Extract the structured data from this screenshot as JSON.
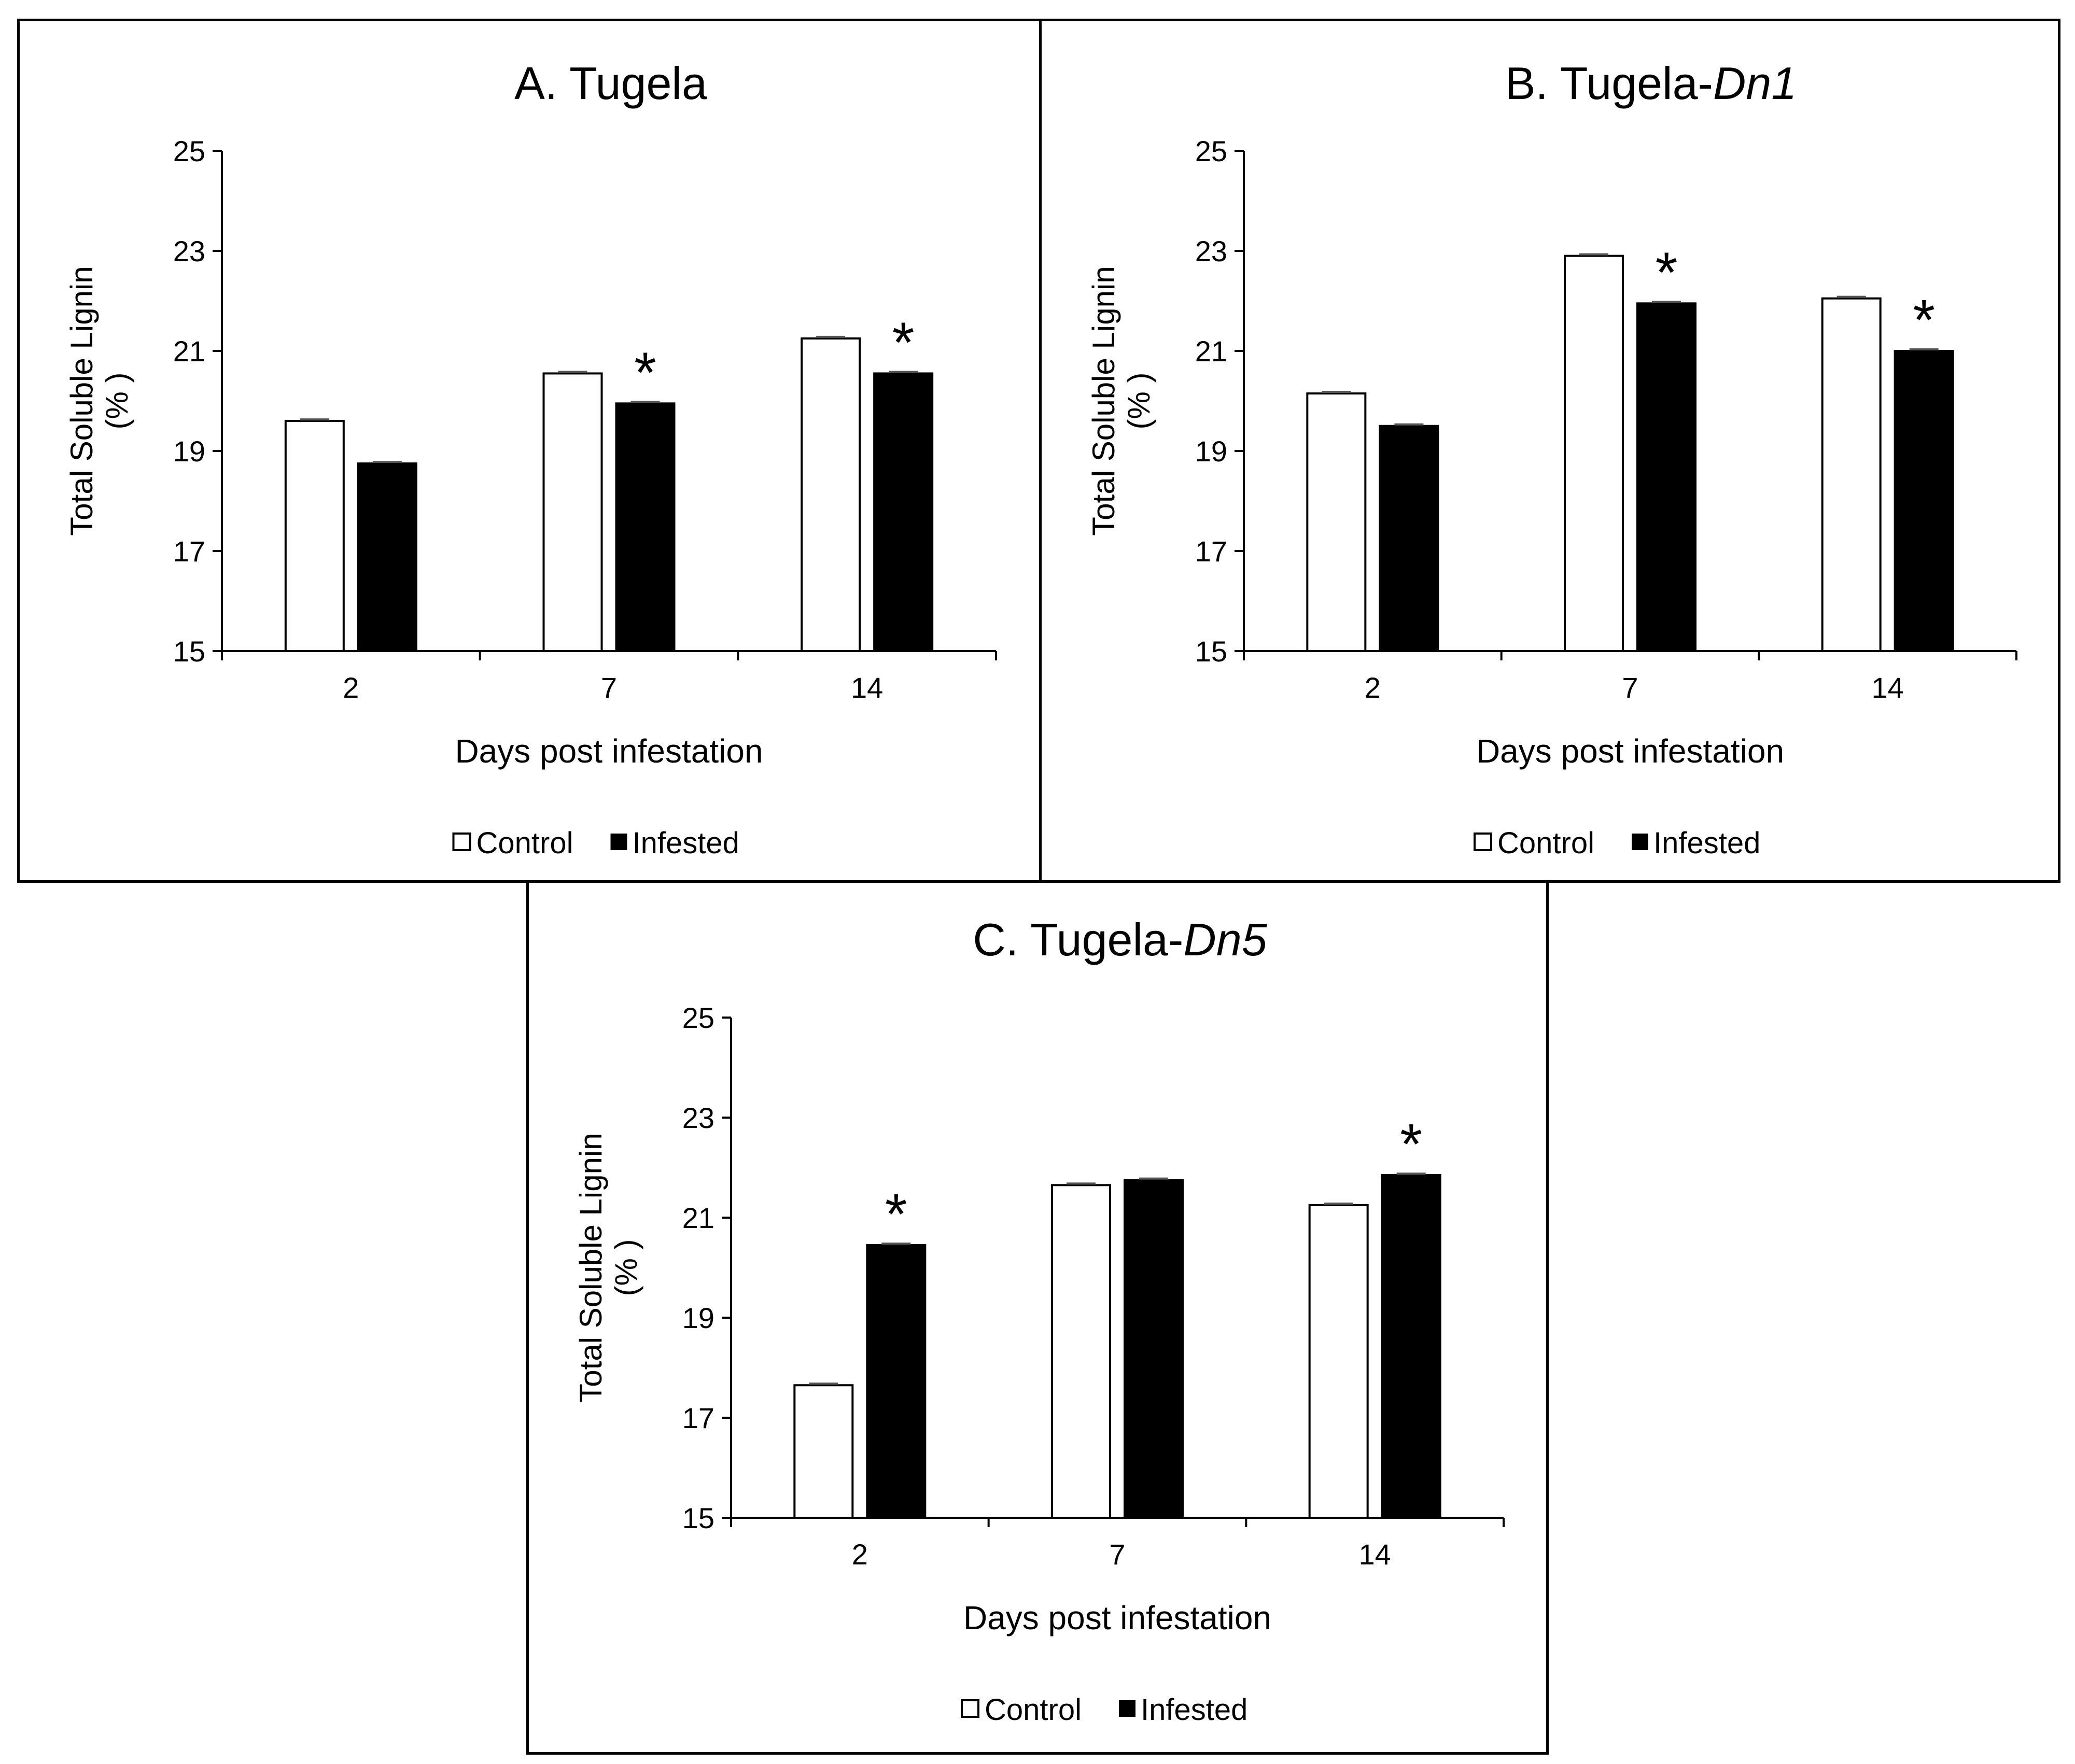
{
  "chart_data": [
    {
      "id": "A",
      "type": "bar",
      "title_plain": "A. Tugela",
      "title_italic": "",
      "xlabel": "Days post infestation",
      "ylabel_line1": "Total Soluble Lignin",
      "ylabel_line2": "(% )",
      "categories": [
        "2",
        "7",
        "14"
      ],
      "ylim": [
        15,
        25
      ],
      "yticks": [
        "15",
        "17",
        "19",
        "21",
        "23",
        "25"
      ],
      "series": [
        {
          "name": "Control",
          "color": "#ffffff",
          "values": [
            19.6,
            20.55,
            21.25
          ]
        },
        {
          "name": "Infested",
          "color": "#000000",
          "values": [
            18.75,
            19.95,
            20.55
          ]
        }
      ],
      "significance": [
        {
          "category": "7",
          "series": "Infested",
          "label": "*"
        },
        {
          "category": "14",
          "series": "Infested",
          "label": "*"
        }
      ],
      "legend": [
        "Control",
        "Infested"
      ]
    },
    {
      "id": "B",
      "type": "bar",
      "title_plain": "B. Tugela-",
      "title_italic": "Dn1",
      "xlabel": "Days post infestation",
      "ylabel_line1": "Total Soluble Lignin",
      "ylabel_line2": "(% )",
      "categories": [
        "2",
        "7",
        "14"
      ],
      "ylim": [
        15,
        25
      ],
      "yticks": [
        "15",
        "17",
        "19",
        "21",
        "23",
        "25"
      ],
      "series": [
        {
          "name": "Control",
          "color": "#ffffff",
          "values": [
            20.15,
            22.9,
            22.05
          ]
        },
        {
          "name": "Infested",
          "color": "#000000",
          "values": [
            19.5,
            21.95,
            21.0
          ]
        }
      ],
      "significance": [
        {
          "category": "7",
          "series": "Infested",
          "label": "*"
        },
        {
          "category": "14",
          "series": "Infested",
          "label": "*"
        }
      ],
      "legend": [
        "Control",
        "Infested"
      ]
    },
    {
      "id": "C",
      "type": "bar",
      "title_plain": "C. Tugela-",
      "title_italic": "Dn5",
      "xlabel": "Days post infestation",
      "ylabel_line1": "Total Soluble Lignin",
      "ylabel_line2": "(% )",
      "categories": [
        "2",
        "7",
        "14"
      ],
      "ylim": [
        15,
        25
      ],
      "yticks": [
        "15",
        "17",
        "19",
        "21",
        "23",
        "25"
      ],
      "series": [
        {
          "name": "Control",
          "color": "#ffffff",
          "values": [
            17.65,
            21.65,
            21.25
          ]
        },
        {
          "name": "Infested",
          "color": "#000000",
          "values": [
            20.45,
            21.75,
            21.85
          ]
        }
      ],
      "significance": [
        {
          "category": "2",
          "series": "Infested",
          "label": "*"
        },
        {
          "category": "14",
          "series": "Infested",
          "label": "*"
        }
      ],
      "legend": [
        "Control",
        "Infested"
      ]
    }
  ]
}
